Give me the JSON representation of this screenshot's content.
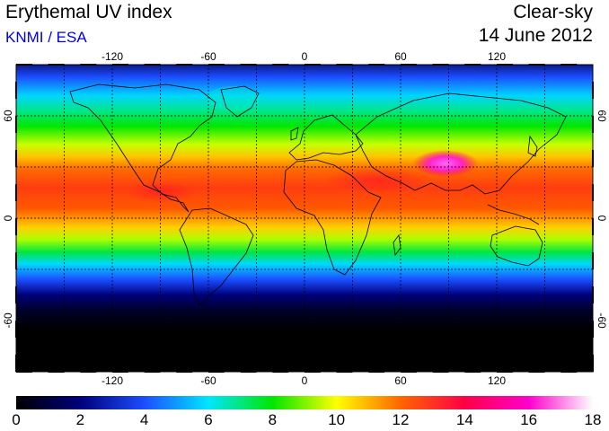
{
  "header": {
    "title": "Erythemal UV index",
    "credit": "KNMI / ESA",
    "mode": "Clear-sky",
    "date": "14 June 2012"
  },
  "map": {
    "projection": "equirectangular",
    "lon_ticks": [
      "-120",
      "-60",
      "0",
      "60",
      "120"
    ],
    "lat_ticks_left": [
      "60",
      "0",
      "-60"
    ],
    "lat_ticks_right": [
      "60",
      "0",
      "-60"
    ],
    "lon_range": [
      -180,
      180
    ],
    "lat_range": [
      -90,
      90
    ],
    "gridlines": "dotted, every 30 degrees"
  },
  "colorbar": {
    "labels": [
      "0",
      "2",
      "4",
      "6",
      "8",
      "10",
      "12",
      "14",
      "16",
      "18"
    ],
    "range": [
      0,
      18
    ],
    "stops": [
      {
        "v": 0,
        "c": "#000000"
      },
      {
        "v": 2,
        "c": "#00007a"
      },
      {
        "v": 4,
        "c": "#1c4dff"
      },
      {
        "v": 6,
        "c": "#00e6ff"
      },
      {
        "v": 8,
        "c": "#00e600"
      },
      {
        "v": 10,
        "c": "#ffff00"
      },
      {
        "v": 12,
        "c": "#ff6600"
      },
      {
        "v": 14,
        "c": "#ff0044"
      },
      {
        "v": 16,
        "c": "#ff00cc"
      },
      {
        "v": 18,
        "c": "#ffffff"
      }
    ]
  }
}
